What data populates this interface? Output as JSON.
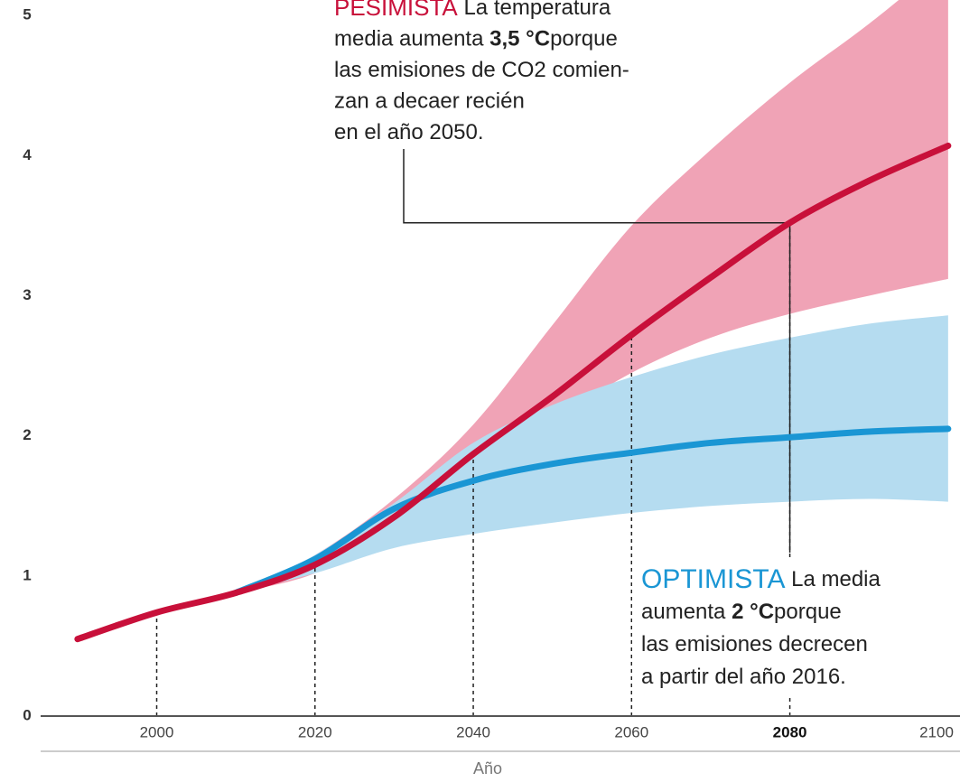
{
  "chart_data": {
    "type": "line",
    "x_label": "Año",
    "x": [
      1990,
      2000,
      2010,
      2020,
      2030,
      2040,
      2050,
      2060,
      2070,
      2080,
      2090,
      2100
    ],
    "series": [
      {
        "color": "#c8103a",
        "values": [
          0.55,
          0.74,
          0.88,
          1.08,
          1.42,
          1.87,
          2.28,
          2.72,
          3.13,
          3.52,
          3.82,
          4.07
        ]
      },
      {
        "color": "#1a96d4",
        "values": [
          null,
          null,
          0.88,
          1.12,
          1.48,
          1.68,
          1.8,
          1.88,
          1.95,
          1.99,
          2.03,
          2.05
        ]
      }
    ],
    "bands": [
      {
        "color": "#f0a3b6",
        "upper": [
          null,
          null,
          0.88,
          1.15,
          1.55,
          2.08,
          2.79,
          3.5,
          4.04,
          4.52,
          4.94,
          5.4
        ],
        "lower": [
          null,
          null,
          0.88,
          1.02,
          1.35,
          1.7,
          2.1,
          2.45,
          2.7,
          2.87,
          3.0,
          3.12
        ]
      },
      {
        "color": "#b5dcf0",
        "upper": [
          null,
          null,
          0.88,
          1.15,
          1.52,
          1.95,
          2.22,
          2.42,
          2.58,
          2.7,
          2.8,
          2.86
        ],
        "lower": [
          null,
          null,
          0.88,
          1.02,
          1.2,
          1.3,
          1.38,
          1.45,
          1.5,
          1.53,
          1.55,
          1.53
        ]
      }
    ],
    "xlim": [
      1980.2,
      2101.5
    ],
    "ylim": [
      -0.47,
      5.11
    ],
    "xticks": [
      2000,
      2020,
      2040,
      2060,
      2080,
      2100
    ],
    "bold_xtick": 2080,
    "yticks": [
      0,
      1,
      2,
      3,
      4,
      5
    ],
    "minor_yticks": [
      0.5,
      1.5,
      2.5,
      3.5,
      4.5
    ],
    "grid": true,
    "annotations": [
      {
        "label": "PESIMISTA",
        "color": "#c8103a",
        "lines": [
          [
            {
              "text": "La temperatura"
            }
          ],
          [
            {
              "text": "media aumenta "
            },
            {
              "text": "3,5 °C",
              "bold": true
            },
            {
              "text": "porque"
            }
          ],
          [
            {
              "text": "las emisiones de CO2 comien-"
            }
          ],
          [
            {
              "text": "zan a decaer recién"
            }
          ],
          [
            {
              "text": "en el año 2050."
            }
          ]
        ]
      },
      {
        "label": "OPTIMISTA",
        "color": "#1a96d4",
        "lines": [
          [
            {
              "text": "La media"
            }
          ],
          [
            {
              "text": "aumenta "
            },
            {
              "text": "2 °C",
              "bold": true
            },
            {
              "text": "porque"
            }
          ],
          [
            {
              "text": "las emisiones decrecen"
            }
          ],
          [
            {
              "text": "a partir del año 2016."
            }
          ]
        ]
      }
    ]
  }
}
